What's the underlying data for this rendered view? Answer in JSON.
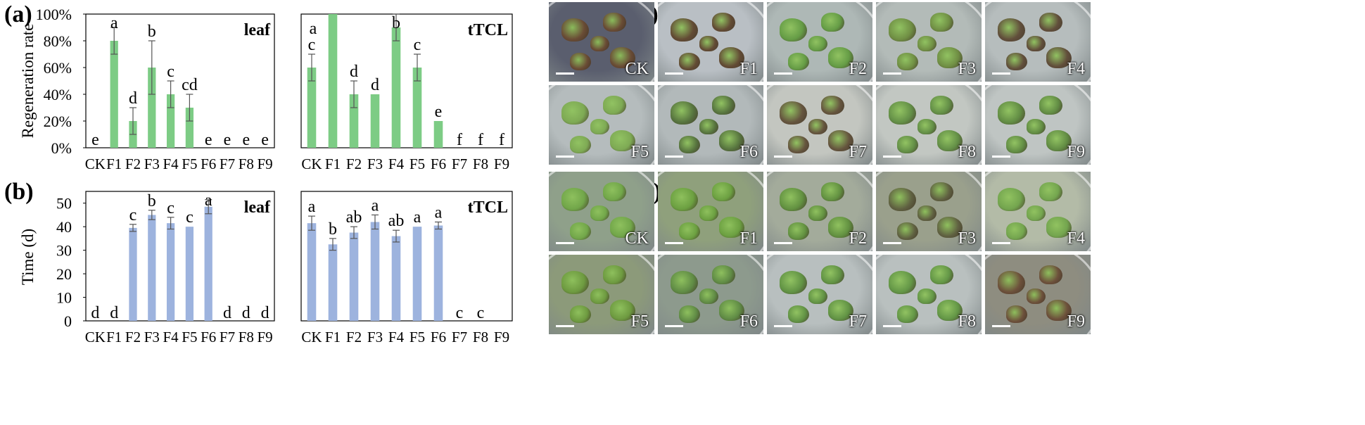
{
  "panel_labels": {
    "a": "(a)",
    "b": "(b)",
    "c": "(c)",
    "d": "(d)"
  },
  "colors": {
    "regeneration_bar": "#7dcc85",
    "time_bar": "#9db3de",
    "bar_edge": "#5a9c62",
    "axis": "#000000"
  },
  "chart_data": [
    {
      "type": "bar",
      "panel": "(a)",
      "title": "leaf",
      "ylabel": "Regeneration rate",
      "categories": [
        "CK",
        "F1",
        "F2",
        "F3",
        "F4",
        "F5",
        "F6",
        "F7",
        "F8",
        "F9"
      ],
      "values": [
        0,
        80,
        20,
        60,
        40,
        30,
        0,
        0,
        0,
        0
      ],
      "errors": [
        0,
        10,
        10,
        20,
        10,
        10,
        0,
        0,
        0,
        0
      ],
      "letters": [
        "e",
        "a",
        "d",
        "b",
        "c",
        "cd",
        "e",
        "e",
        "e",
        "e"
      ],
      "yticks": [
        "0%",
        "20%",
        "40%",
        "60%",
        "80%",
        "100%"
      ],
      "ylim": [
        0,
        100
      ],
      "grid": false
    },
    {
      "type": "bar",
      "panel": "(a)",
      "title": "tTCL",
      "ylabel": "",
      "categories": [
        "CK",
        "F1",
        "F2",
        "F3",
        "F4",
        "F5",
        "F6",
        "F7",
        "F8",
        "F9"
      ],
      "values": [
        60,
        100,
        40,
        40,
        90,
        60,
        20,
        0,
        0,
        0
      ],
      "errors": [
        10,
        0,
        10,
        0,
        10,
        10,
        0,
        0,
        0,
        0
      ],
      "letters": [
        "c",
        "a",
        "d",
        "d",
        "b",
        "c",
        "e",
        "f",
        "f",
        "f"
      ],
      "ylim": [
        0,
        100
      ],
      "grid": false
    },
    {
      "type": "bar",
      "panel": "(b)",
      "title": "leaf",
      "ylabel": "Time (d)",
      "categories": [
        "CK",
        "F1",
        "F2",
        "F3",
        "F4",
        "F5",
        "F6",
        "F7",
        "F8",
        "F9"
      ],
      "values": [
        0,
        0,
        39.5,
        45,
        41.5,
        40,
        48.5,
        0,
        0,
        0
      ],
      "errors": [
        0,
        0,
        1.5,
        2,
        2.5,
        0,
        3,
        0,
        0,
        0
      ],
      "letters": [
        "d",
        "d",
        "c",
        "b",
        "c",
        "c",
        "a",
        "d",
        "d",
        "d"
      ],
      "yticks": [
        "0",
        "10",
        "20",
        "30",
        "40",
        "50"
      ],
      "ylim": [
        0,
        55
      ],
      "grid": false
    },
    {
      "type": "bar",
      "panel": "(b)",
      "title": "tTCL",
      "ylabel": "",
      "categories": [
        "CK",
        "F1",
        "F2",
        "F3",
        "F4",
        "F5",
        "F6",
        "F7",
        "F8",
        "F9"
      ],
      "values": [
        41.5,
        32.5,
        37.5,
        42,
        36,
        40,
        40.5,
        0,
        0,
        0
      ],
      "errors": [
        3,
        2.5,
        2.5,
        3,
        2.5,
        0,
        1.5,
        0,
        0,
        0
      ],
      "letters": [
        "a",
        "b",
        "ab",
        "a",
        "ab",
        "a",
        "a",
        "c",
        "c",
        ""
      ],
      "ylim": [
        0,
        55
      ],
      "grid": false
    }
  ],
  "photos": {
    "c": [
      {
        "label": "CK",
        "bg": "#5a5e6e",
        "tissue": "#6b4a30"
      },
      {
        "label": "F1",
        "bg": "#b9bfc4",
        "tissue": "#5b4128"
      },
      {
        "label": "F2",
        "bg": "#aeb8b6",
        "tissue": "#5f9a3c"
      },
      {
        "label": "F3",
        "bg": "#b3bbb8",
        "tissue": "#6a8b3a"
      },
      {
        "label": "F4",
        "bg": "#b6bdbd",
        "tissue": "#5a4530"
      },
      {
        "label": "F5",
        "bg": "#b5bcbd",
        "tissue": "#79a84b"
      },
      {
        "label": "F6",
        "bg": "#b2b9ba",
        "tissue": "#4f6e34"
      },
      {
        "label": "F7",
        "bg": "#c3c6c0",
        "tissue": "#5d4b33"
      },
      {
        "label": "F8",
        "bg": "#c2c7c2",
        "tissue": "#5b8a3c"
      },
      {
        "label": "F9",
        "bg": "#bfc5c3",
        "tissue": "#5a8839"
      }
    ],
    "d": [
      {
        "label": "CK",
        "bg": "#8fa08a",
        "tissue": "#6fa744"
      },
      {
        "label": "F1",
        "bg": "#8fa07c",
        "tissue": "#69a03c"
      },
      {
        "label": "F2",
        "bg": "#a3ab9b",
        "tissue": "#5d8f39"
      },
      {
        "label": "F3",
        "bg": "#9aa08c",
        "tissue": "#5b5c3b"
      },
      {
        "label": "F4",
        "bg": "#b3bba7",
        "tissue": "#6ea347"
      },
      {
        "label": "F5",
        "bg": "#8c9a7a",
        "tissue": "#6b9a3b"
      },
      {
        "label": "F6",
        "bg": "#8d9a8d",
        "tissue": "#5c8a3f"
      },
      {
        "label": "F7",
        "bg": "#b8bfbf",
        "tissue": "#5a8f3a"
      },
      {
        "label": "F8",
        "bg": "#b9c0bf",
        "tissue": "#5c933c"
      },
      {
        "label": "F9",
        "bg": "#8e8d80",
        "tissue": "#6a4b35"
      }
    ]
  }
}
